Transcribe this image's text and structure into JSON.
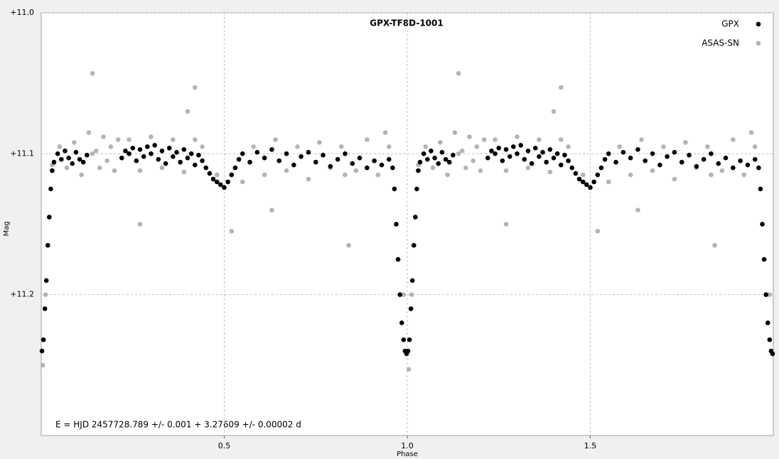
{
  "chart_data": {
    "type": "scatter",
    "title": "GPX-TF8D-1001",
    "x_label": "Phase",
    "y_label": "Mag",
    "annotation": "E = HJD 2457728.789 +/- 0.001 + 3.27609 +/- 0.00002 d",
    "xlim": [
      0,
      2
    ],
    "ylim": [
      11.0,
      11.3
    ],
    "y_inverted": true,
    "grid": true,
    "legend": "top-right",
    "xticks": [
      0.5,
      {
        "value": 1,
        "label": "1.0"
      },
      1.5
    ],
    "yticks": [
      {
        "value": 11.0,
        "label": "+11.0"
      },
      {
        "value": 11.1,
        "label": "+11.1"
      },
      {
        "value": 11.2,
        "label": "+11.2"
      }
    ],
    "series": [
      {
        "name": "ASAS-SN",
        "color": "#b4b4b4",
        "x": [
          0.004,
          0.012,
          0.03,
          0.05,
          0.07,
          0.09,
          0.11,
          0.13,
          0.14,
          0.15,
          0.16,
          0.17,
          0.18,
          0.19,
          0.2,
          0.21,
          0.24,
          0.27,
          0.3,
          0.33,
          0.36,
          0.39,
          0.4,
          0.42,
          0.44,
          0.48,
          0.52,
          0.55,
          0.58,
          0.61,
          0.64,
          0.67,
          0.7,
          0.73,
          0.76,
          0.79,
          0.82,
          0.84,
          0.86,
          0.89,
          0.92,
          0.94,
          0.95,
          0.99,
          0.14,
          0.42,
          0.27,
          0.63,
          0.83,
          1.004,
          1.012,
          1.03,
          1.05,
          1.07,
          1.09,
          1.11,
          1.13,
          1.14,
          1.15,
          1.16,
          1.17,
          1.18,
          1.19,
          1.2,
          1.21,
          1.24,
          1.27,
          1.3,
          1.33,
          1.36,
          1.39,
          1.4,
          1.42,
          1.44,
          1.48,
          1.52,
          1.55,
          1.58,
          1.61,
          1.64,
          1.67,
          1.7,
          1.73,
          1.76,
          1.79,
          1.82,
          1.84,
          1.86,
          1.89,
          1.92,
          1.94,
          1.95,
          1.99,
          1.14,
          1.42,
          1.27,
          1.63,
          1.83
        ],
        "values": [
          11.25,
          11.2,
          11.108,
          11.095,
          11.11,
          11.092,
          11.115,
          11.085,
          11.1,
          11.098,
          11.11,
          11.088,
          11.105,
          11.095,
          11.112,
          11.09,
          11.09,
          11.112,
          11.088,
          11.11,
          11.09,
          11.113,
          11.07,
          11.09,
          11.095,
          11.115,
          11.155,
          11.12,
          11.095,
          11.115,
          11.09,
          11.112,
          11.095,
          11.118,
          11.092,
          11.11,
          11.095,
          11.165,
          11.112,
          11.09,
          11.115,
          11.085,
          11.095,
          11.2,
          11.043,
          11.053,
          11.15,
          11.14,
          11.115,
          11.253,
          11.2,
          11.108,
          11.095,
          11.11,
          11.092,
          11.115,
          11.085,
          11.1,
          11.098,
          11.11,
          11.088,
          11.105,
          11.095,
          11.112,
          11.09,
          11.09,
          11.112,
          11.088,
          11.11,
          11.09,
          11.113,
          11.07,
          11.09,
          11.095,
          11.115,
          11.155,
          11.12,
          11.095,
          11.115,
          11.09,
          11.112,
          11.095,
          11.118,
          11.092,
          11.11,
          11.095,
          11.165,
          11.112,
          11.09,
          11.115,
          11.085,
          11.095,
          11.2,
          11.043,
          11.053,
          11.15,
          11.14,
          11.115
        ]
      },
      {
        "name": "GPX",
        "color": "#000000",
        "x": [
          0.002,
          0.006,
          0.01,
          0.014,
          0.018,
          0.022,
          0.026,
          0.03,
          0.035,
          0.045,
          0.055,
          0.065,
          0.075,
          0.085,
          0.095,
          0.105,
          0.115,
          0.125,
          0.22,
          0.23,
          0.24,
          0.25,
          0.26,
          0.27,
          0.28,
          0.29,
          0.3,
          0.31,
          0.32,
          0.33,
          0.34,
          0.35,
          0.36,
          0.37,
          0.38,
          0.39,
          0.4,
          0.41,
          0.42,
          0.43,
          0.44,
          0.45,
          0.46,
          0.47,
          0.48,
          0.49,
          0.5,
          0.51,
          0.52,
          0.53,
          0.54,
          0.55,
          0.57,
          0.59,
          0.61,
          0.63,
          0.65,
          0.67,
          0.69,
          0.71,
          0.73,
          0.75,
          0.77,
          0.79,
          0.81,
          0.83,
          0.85,
          0.87,
          0.89,
          0.91,
          0.93,
          0.95,
          0.96,
          0.965,
          0.97,
          0.975,
          0.98,
          0.985,
          0.99,
          0.994,
          0.998,
          1.002,
          1.006,
          1.01,
          1.014,
          1.018,
          1.022,
          1.026,
          1.03,
          1.035,
          1.045,
          1.055,
          1.065,
          1.075,
          1.085,
          1.095,
          1.105,
          1.115,
          1.125,
          1.22,
          1.23,
          1.24,
          1.25,
          1.26,
          1.27,
          1.28,
          1.29,
          1.3,
          1.31,
          1.32,
          1.33,
          1.34,
          1.35,
          1.36,
          1.37,
          1.38,
          1.39,
          1.4,
          1.41,
          1.42,
          1.43,
          1.44,
          1.45,
          1.46,
          1.47,
          1.48,
          1.49,
          1.5,
          1.51,
          1.52,
          1.53,
          1.54,
          1.55,
          1.57,
          1.59,
          1.61,
          1.63,
          1.65,
          1.67,
          1.69,
          1.71,
          1.73,
          1.75,
          1.77,
          1.79,
          1.81,
          1.83,
          1.85,
          1.87,
          1.89,
          1.91,
          1.93,
          1.95,
          1.96,
          1.965,
          1.97,
          1.975,
          1.98,
          1.985,
          1.99,
          1.994,
          1.998
        ],
        "values": [
          11.24,
          11.232,
          11.21,
          11.19,
          11.165,
          11.145,
          11.125,
          11.112,
          11.106,
          11.1,
          11.104,
          11.098,
          11.103,
          11.107,
          11.099,
          11.104,
          11.106,
          11.101,
          11.103,
          11.098,
          11.1,
          11.096,
          11.105,
          11.097,
          11.102,
          11.095,
          11.1,
          11.094,
          11.104,
          11.098,
          11.107,
          11.096,
          11.102,
          11.099,
          11.106,
          11.097,
          11.103,
          11.1,
          11.108,
          11.101,
          11.105,
          11.11,
          11.114,
          11.118,
          11.12,
          11.122,
          11.124,
          11.12,
          11.115,
          11.11,
          11.104,
          11.1,
          11.106,
          11.099,
          11.103,
          11.097,
          11.105,
          11.1,
          11.108,
          11.102,
          11.099,
          11.106,
          11.101,
          11.109,
          11.104,
          11.1,
          11.107,
          11.103,
          11.11,
          11.105,
          11.108,
          11.104,
          11.11,
          11.125,
          11.15,
          11.175,
          11.2,
          11.22,
          11.232,
          11.24,
          11.242,
          11.24,
          11.232,
          11.21,
          11.19,
          11.165,
          11.145,
          11.125,
          11.112,
          11.106,
          11.1,
          11.104,
          11.098,
          11.103,
          11.107,
          11.099,
          11.104,
          11.106,
          11.101,
          11.103,
          11.098,
          11.1,
          11.096,
          11.105,
          11.097,
          11.102,
          11.095,
          11.1,
          11.094,
          11.104,
          11.098,
          11.107,
          11.096,
          11.102,
          11.099,
          11.106,
          11.097,
          11.103,
          11.1,
          11.108,
          11.101,
          11.105,
          11.11,
          11.114,
          11.118,
          11.12,
          11.122,
          11.124,
          11.12,
          11.115,
          11.11,
          11.104,
          11.1,
          11.106,
          11.099,
          11.103,
          11.097,
          11.105,
          11.1,
          11.108,
          11.102,
          11.099,
          11.106,
          11.101,
          11.109,
          11.104,
          11.1,
          11.107,
          11.103,
          11.11,
          11.105,
          11.108,
          11.104,
          11.11,
          11.125,
          11.15,
          11.175,
          11.2,
          11.22,
          11.232,
          11.24,
          11.242
        ]
      }
    ]
  }
}
